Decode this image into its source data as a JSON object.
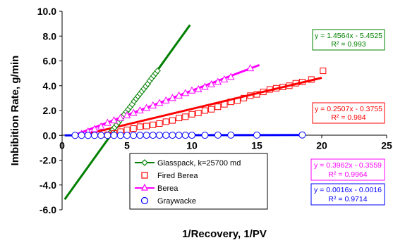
{
  "chart_data": {
    "type": "scatter",
    "xlabel": "1/Recovery, 1/PV",
    "ylabel": "Imbibition Rate, g/min",
    "xlim": [
      0,
      25
    ],
    "ylim": [
      -6,
      10
    ],
    "x_ticks": [
      "0",
      "5",
      "10",
      "15",
      "20",
      "25"
    ],
    "y_ticks": [
      "10.0",
      "8.0",
      "6.0",
      "4.0",
      "2.0",
      "0.0",
      "-2.0",
      "-4.0",
      "-6.0"
    ],
    "grid": false,
    "legend_position": "bottom-center",
    "series": [
      {
        "name": "Glasspack, k=25700 md",
        "marker": "diamond",
        "color": "#008000",
        "x": [
          3.6,
          3.75,
          3.9,
          4.05,
          4.2,
          4.35,
          4.5,
          4.65,
          4.8,
          4.95,
          5.1,
          5.25,
          5.4,
          5.55,
          5.7,
          5.85,
          6.0,
          6.15,
          6.3,
          6.45,
          6.6,
          6.75,
          6.9,
          7.05,
          7.2,
          7.35
        ],
        "y": [
          0.1,
          0.25,
          0.45,
          0.65,
          0.85,
          1.05,
          1.25,
          1.5,
          1.7,
          1.9,
          2.1,
          2.3,
          2.5,
          2.75,
          2.95,
          3.15,
          3.35,
          3.55,
          3.75,
          3.95,
          4.15,
          4.4,
          4.6,
          4.8,
          5.0,
          5.2
        ],
        "trendline": {
          "slope": 1.4564,
          "intercept": -5.4525,
          "x_range": [
            0.2,
            9.85
          ],
          "equation": "y = 1.4564x - 5.4525",
          "r2": "R² = 0.993"
        }
      },
      {
        "name": "Fired Berea",
        "marker": "square",
        "color": "#FF0000",
        "x": [
          3.5,
          4.0,
          4.5,
          5.0,
          5.5,
          6.0,
          6.5,
          7.0,
          7.5,
          8.0,
          8.5,
          9.0,
          9.5,
          10.0,
          10.5,
          11.0,
          11.5,
          12.0,
          12.5,
          13.0,
          13.5,
          14.0,
          14.5,
          15.0,
          15.5,
          16.0,
          16.5,
          17.0,
          17.5,
          18.0,
          18.5,
          19.2,
          20.1
        ],
        "y": [
          0.05,
          0.15,
          0.3,
          0.45,
          0.55,
          0.7,
          0.75,
          0.85,
          0.95,
          1.1,
          1.2,
          1.4,
          1.5,
          1.7,
          1.8,
          2.0,
          2.1,
          2.3,
          2.5,
          2.7,
          2.8,
          3.0,
          3.2,
          3.3,
          3.5,
          3.7,
          3.8,
          3.9,
          4.0,
          4.2,
          4.3,
          4.5,
          5.2
        ],
        "trendline": {
          "slope": 0.2507,
          "intercept": -0.3755,
          "x_range": [
            2.0,
            20.0
          ],
          "equation": "y = 0.2507x - 0.3755",
          "r2": "R² = 0.984"
        }
      },
      {
        "name": "Berea",
        "marker": "triangle",
        "color": "#FF00FF",
        "x": [
          1.5,
          2.0,
          2.5,
          3.0,
          3.5,
          4.0,
          4.5,
          5.0,
          5.5,
          6.0,
          6.5,
          7.0,
          7.5,
          8.0,
          8.5,
          9.0,
          9.5,
          10.0,
          10.5,
          11.0,
          11.5,
          12.0,
          12.5,
          13.0,
          14.5
        ],
        "y": [
          0.1,
          0.3,
          0.5,
          0.7,
          1.0,
          1.2,
          1.4,
          1.6,
          1.8,
          2.0,
          2.2,
          2.4,
          2.6,
          2.8,
          3.0,
          3.2,
          3.4,
          3.6,
          3.7,
          3.9,
          4.1,
          4.3,
          4.5,
          4.7,
          5.4
        ],
        "trendline": {
          "slope": 0.3962,
          "intercept": -0.3559,
          "x_range": [
            1.0,
            15.2
          ],
          "equation": "y = 0.3962x - 0.3559",
          "r2": "R² = 0.9964"
        }
      },
      {
        "name": "Graywacke",
        "marker": "circle",
        "color": "#0000FF",
        "x": [
          1.0,
          1.5,
          2.0,
          2.5,
          3.0,
          3.5,
          4.0,
          4.5,
          5.0,
          5.5,
          6.0,
          6.5,
          7.0,
          7.5,
          8.0,
          8.5,
          9.0,
          9.5,
          10.0,
          11.0,
          12.0,
          13.0,
          15.0,
          18.5
        ],
        "y": [
          0,
          0,
          0,
          0,
          0,
          0,
          0,
          0,
          0,
          0,
          0.01,
          0.01,
          0.01,
          0.01,
          0.01,
          0.01,
          0.01,
          0.01,
          0.01,
          0.01,
          0.02,
          0.02,
          0.02,
          0.03
        ],
        "trendline": {
          "slope": 0.0016,
          "intercept": -0.0016,
          "x_range": [
            0.2,
            18.5
          ],
          "equation": "y = 0.0016x - 0.0016",
          "r2": "R² = 0.9714"
        }
      }
    ]
  }
}
